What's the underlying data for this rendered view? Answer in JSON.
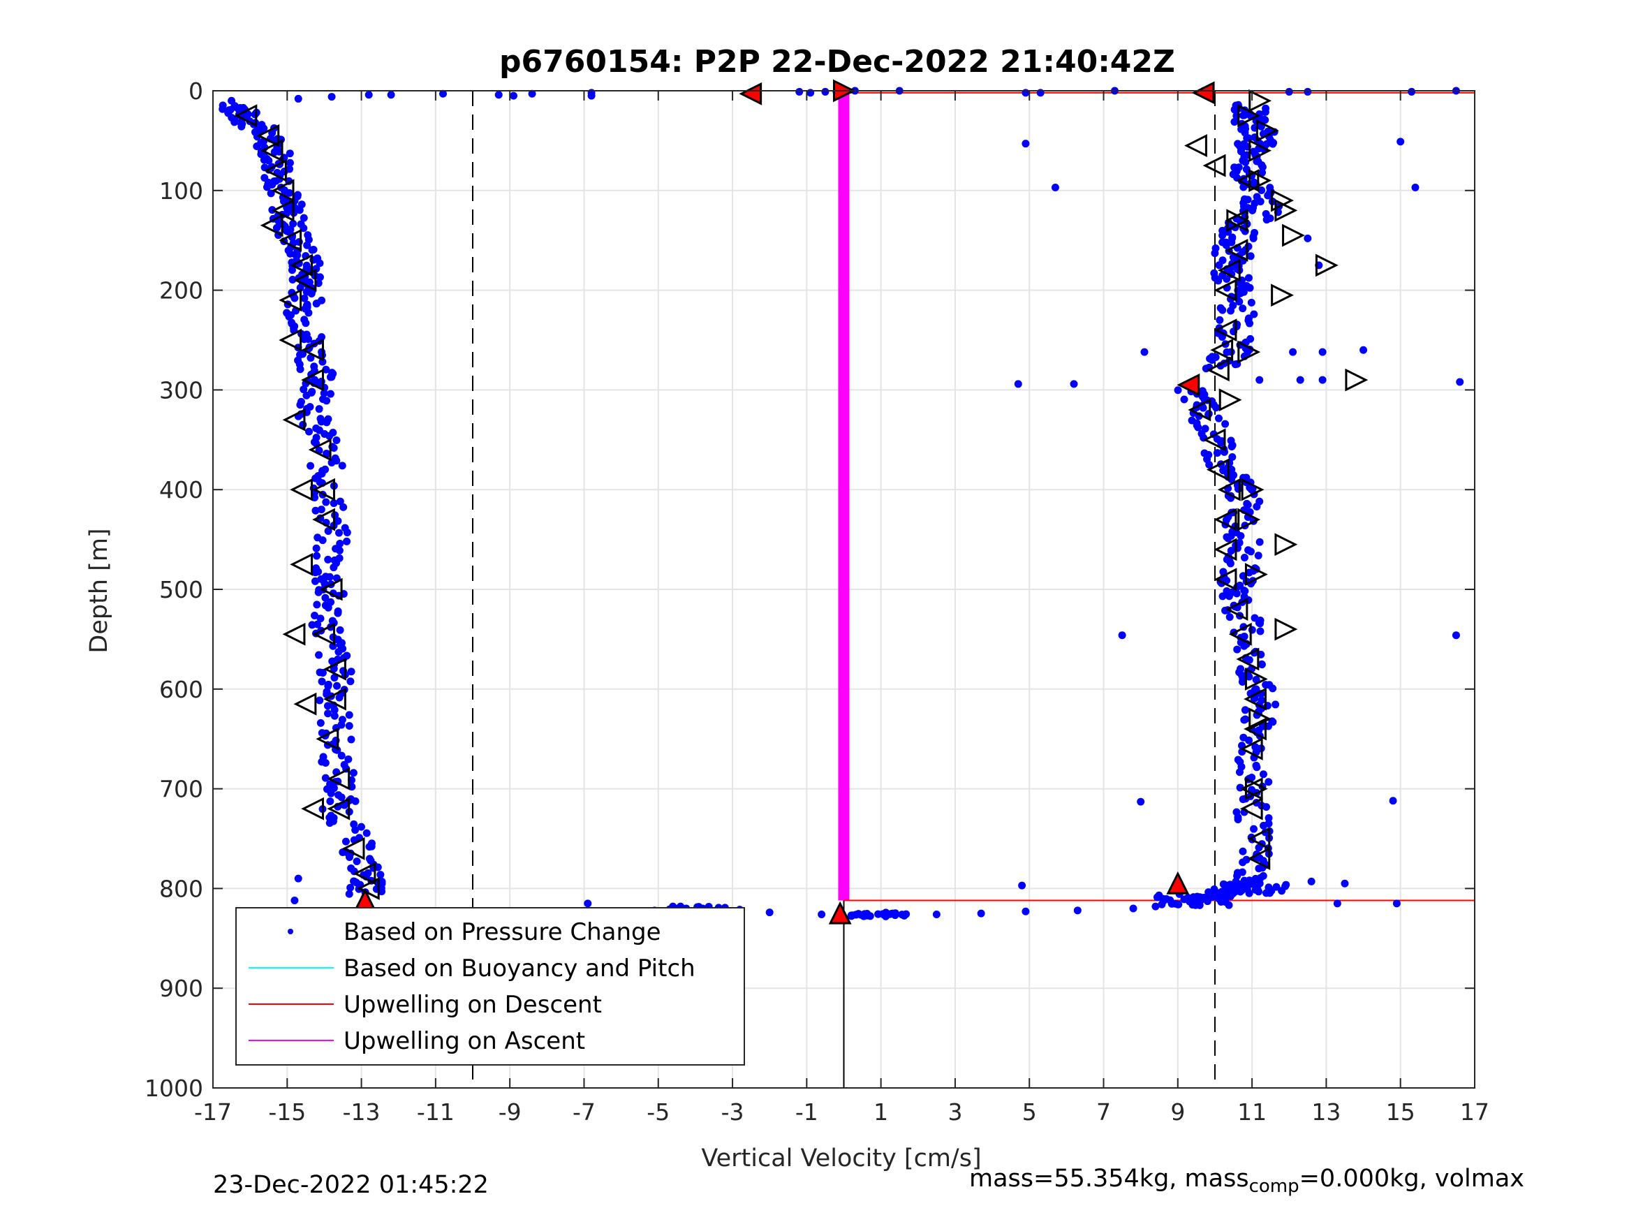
{
  "chart_data": {
    "type": "scatter",
    "title": "p6760154: P2P 22-Dec-2022 21:40:42Z",
    "xlabel": "Vertical Velocity [cm/s]",
    "ylabel": "Depth [m]",
    "xlim": [
      -17,
      17
    ],
    "ylim": [
      0,
      1000
    ],
    "y_reversed": true,
    "grid": true,
    "legend_position": "bottom-left",
    "xticks": [
      "-17",
      "-15",
      "-13",
      "-11",
      "-9",
      "-7",
      "-5",
      "-3",
      "-1",
      "1",
      "3",
      "5",
      "7",
      "9",
      "11",
      "13",
      "15",
      "17"
    ],
    "yticks": [
      "0",
      "100",
      "200",
      "300",
      "400",
      "500",
      "600",
      "700",
      "800",
      "900",
      "1000"
    ],
    "reference_lines": {
      "dashed_x": [
        -10,
        10
      ],
      "solid_x_below": 0
    },
    "legend": [
      "Based on Pressure Change",
      "Based on Buoyancy and Pitch",
      "Upwelling on Descent",
      "Upwelling on Ascent"
    ],
    "colors": {
      "pressure": "#0000ff",
      "buoyancy": "#00ffff",
      "descent": "#ff0000",
      "ascent": "#ff00ff",
      "marker_red": "#ff0000"
    },
    "series": [
      {
        "name": "Based on Pressure Change",
        "descent_profile": [
          [
            -16.4,
            15
          ],
          [
            -16.2,
            25
          ],
          [
            -15.7,
            40
          ],
          [
            -15.3,
            60
          ],
          [
            -15.2,
            80
          ],
          [
            -15.1,
            100
          ],
          [
            -15.0,
            120
          ],
          [
            -14.9,
            140
          ],
          [
            -14.6,
            160
          ],
          [
            -14.5,
            180
          ],
          [
            -14.4,
            200
          ],
          [
            -14.6,
            220
          ],
          [
            -14.4,
            250
          ],
          [
            -14.2,
            280
          ],
          [
            -14.1,
            300
          ],
          [
            -14.3,
            330
          ],
          [
            -14.0,
            360
          ],
          [
            -13.9,
            400
          ],
          [
            -13.8,
            440
          ],
          [
            -13.9,
            480
          ],
          [
            -13.9,
            510
          ],
          [
            -13.9,
            545
          ],
          [
            -13.7,
            580
          ],
          [
            -13.7,
            610
          ],
          [
            -13.7,
            650
          ],
          [
            -13.6,
            690
          ],
          [
            -13.6,
            720
          ],
          [
            -13.1,
            760
          ],
          [
            -12.8,
            790
          ],
          [
            -12.9,
            805
          ]
        ],
        "ascent_profile": [
          [
            9.3,
            300
          ],
          [
            9.7,
            320
          ],
          [
            10.0,
            350
          ],
          [
            10.2,
            380
          ],
          [
            10.8,
            400
          ],
          [
            10.7,
            430
          ],
          [
            10.8,
            460
          ],
          [
            10.6,
            490
          ],
          [
            10.6,
            510
          ],
          [
            10.9,
            545
          ],
          [
            11.0,
            580
          ],
          [
            11.2,
            610
          ],
          [
            11.1,
            640
          ],
          [
            11.0,
            680
          ],
          [
            11.0,
            720
          ],
          [
            11.1,
            760
          ],
          [
            11.0,
            790
          ],
          [
            10.5,
            800
          ],
          [
            10.2,
            805
          ],
          [
            9.6,
            810
          ]
        ],
        "upper_ascent_profile": [
          [
            10.9,
            15
          ],
          [
            11.0,
            30
          ],
          [
            11.2,
            45
          ],
          [
            11.0,
            60
          ],
          [
            10.9,
            80
          ],
          [
            11.2,
            100
          ],
          [
            11.3,
            120
          ],
          [
            10.6,
            140
          ],
          [
            10.5,
            160
          ],
          [
            10.4,
            180
          ],
          [
            10.5,
            200
          ],
          [
            10.6,
            230
          ],
          [
            10.5,
            260
          ],
          [
            10.1,
            280
          ]
        ],
        "surface_points": [
          [
            -16.5,
            10
          ],
          [
            -14.7,
            8
          ],
          [
            -13.8,
            6
          ],
          [
            -12.8,
            4
          ],
          [
            -12.2,
            4
          ],
          [
            -10.8,
            3
          ],
          [
            -9.3,
            4
          ],
          [
            -8.9,
            5
          ],
          [
            -8.4,
            3
          ],
          [
            -6.8,
            2
          ],
          [
            -6.8,
            5
          ],
          [
            -2.5,
            3
          ],
          [
            -1.2,
            1
          ],
          [
            -0.9,
            2
          ],
          [
            -0.5,
            1
          ],
          [
            -0.2,
            1
          ],
          [
            0.3,
            0
          ],
          [
            1.5,
            0
          ],
          [
            4.9,
            2
          ],
          [
            5.3,
            2
          ],
          [
            7.3,
            0
          ],
          [
            9.7,
            0
          ],
          [
            12.0,
            1
          ],
          [
            12.5,
            1
          ],
          [
            15.3,
            1
          ],
          [
            16.5,
            0
          ]
        ],
        "bottom_points": [
          [
            -6.9,
            815
          ],
          [
            -5.1,
            822
          ],
          [
            -4.4,
            818
          ],
          [
            -3.8,
            820
          ],
          [
            -3.0,
            823
          ],
          [
            -2.0,
            824
          ],
          [
            -0.6,
            826
          ],
          [
            0.2,
            827
          ],
          [
            1.2,
            826
          ],
          [
            2.5,
            826
          ],
          [
            3.7,
            825
          ],
          [
            4.9,
            823
          ],
          [
            6.3,
            822
          ],
          [
            7.8,
            820
          ],
          [
            8.4,
            818
          ],
          [
            9.0,
            816
          ],
          [
            9.8,
            812
          ],
          [
            10.3,
            808
          ]
        ],
        "outliers": [
          [
            4.9,
            53
          ],
          [
            5.7,
            97
          ],
          [
            15.0,
            51
          ],
          [
            15.4,
            97
          ],
          [
            12.5,
            148
          ],
          [
            12.8,
            175
          ],
          [
            8.1,
            262
          ],
          [
            12.1,
            262
          ],
          [
            12.9,
            262
          ],
          [
            14.0,
            260
          ],
          [
            4.7,
            294
          ],
          [
            6.2,
            294
          ],
          [
            11.2,
            290
          ],
          [
            12.3,
            290
          ],
          [
            12.9,
            290
          ],
          [
            16.6,
            292
          ],
          [
            7.5,
            546
          ],
          [
            16.5,
            546
          ],
          [
            8.0,
            713
          ],
          [
            14.8,
            712
          ],
          [
            4.8,
            797
          ],
          [
            12.6,
            793
          ],
          [
            13.5,
            795
          ],
          [
            14.9,
            815
          ],
          [
            13.3,
            815
          ],
          [
            -14.8,
            812
          ],
          [
            -14.7,
            790
          ]
        ]
      }
    ],
    "triangles": {
      "descent_left": [
        [
          -16.1,
          25
        ],
        [
          -15.5,
          45
        ],
        [
          -15.4,
          60
        ],
        [
          -15.3,
          80
        ],
        [
          -15.1,
          100
        ],
        [
          -15.1,
          120
        ],
        [
          -15.4,
          135
        ],
        [
          -14.9,
          150
        ],
        [
          -14.6,
          175
        ],
        [
          -14.5,
          190
        ],
        [
          -14.9,
          210
        ],
        [
          -14.9,
          250
        ],
        [
          -14.3,
          260
        ],
        [
          -14.3,
          290
        ],
        [
          -14.8,
          330
        ],
        [
          -14.1,
          360
        ],
        [
          -14.6,
          400
        ],
        [
          -14.0,
          400
        ],
        [
          -14.0,
          430
        ],
        [
          -14.6,
          475
        ],
        [
          -13.8,
          500
        ],
        [
          -14.8,
          545
        ],
        [
          -14.0,
          545
        ],
        [
          -13.7,
          580
        ],
        [
          -14.5,
          615
        ],
        [
          -13.7,
          610
        ],
        [
          -13.9,
          650
        ],
        [
          -13.6,
          690
        ],
        [
          -14.3,
          720
        ],
        [
          -13.6,
          720
        ],
        [
          -13.2,
          760
        ],
        [
          -12.9,
          785
        ],
        [
          -12.8,
          800
        ]
      ],
      "ascent_left": [
        [
          9.5,
          55
        ],
        [
          10.0,
          75
        ],
        [
          10.9,
          90
        ],
        [
          10.6,
          130
        ],
        [
          10.6,
          160
        ],
        [
          10.4,
          180
        ],
        [
          10.3,
          200
        ],
        [
          10.3,
          240
        ],
        [
          10.2,
          260
        ],
        [
          10.1,
          280
        ],
        [
          9.6,
          320
        ],
        [
          10.0,
          350
        ],
        [
          10.1,
          380
        ],
        [
          10.4,
          400
        ],
        [
          10.3,
          430
        ],
        [
          10.3,
          460
        ],
        [
          10.3,
          490
        ],
        [
          10.6,
          520
        ],
        [
          10.7,
          545
        ],
        [
          10.9,
          570
        ],
        [
          11.1,
          610
        ],
        [
          11.1,
          640
        ],
        [
          11.0,
          660
        ],
        [
          11.0,
          700
        ],
        [
          11.0,
          720
        ],
        [
          11.2,
          750
        ],
        [
          11.2,
          770
        ]
      ],
      "ascent_right": [
        [
          11.2,
          10
        ],
        [
          10.9,
          25
        ],
        [
          11.4,
          40
        ],
        [
          11.2,
          60
        ],
        [
          11.2,
          90
        ],
        [
          11.8,
          110
        ],
        [
          11.9,
          120
        ],
        [
          10.6,
          130
        ],
        [
          12.1,
          145
        ],
        [
          13.0,
          175
        ],
        [
          11.8,
          205
        ],
        [
          10.9,
          262
        ],
        [
          13.8,
          290
        ],
        [
          10.4,
          310
        ],
        [
          11.0,
          400
        ],
        [
          10.9,
          430
        ],
        [
          11.9,
          455
        ],
        [
          11.1,
          485
        ],
        [
          11.9,
          540
        ],
        [
          11.1,
          590
        ],
        [
          11.2,
          630
        ],
        [
          11.1,
          700
        ]
      ],
      "red": [
        [
          -2.5,
          3
        ],
        [
          0.0,
          0
        ],
        [
          9.7,
          2
        ],
        [
          9.3,
          295
        ],
        [
          9.0,
          795
        ],
        [
          -12.9,
          812
        ],
        [
          -0.1,
          825
        ]
      ]
    },
    "descent_lines_y": [
      2,
      812
    ],
    "ascent_line_x": 0
  },
  "footer": {
    "left": "23-Dec-2022 01:45:22",
    "right_prefix": "mass=55.354kg, mass",
    "right_sub": "comp",
    "right_suffix": "=0.000kg, volmax"
  }
}
